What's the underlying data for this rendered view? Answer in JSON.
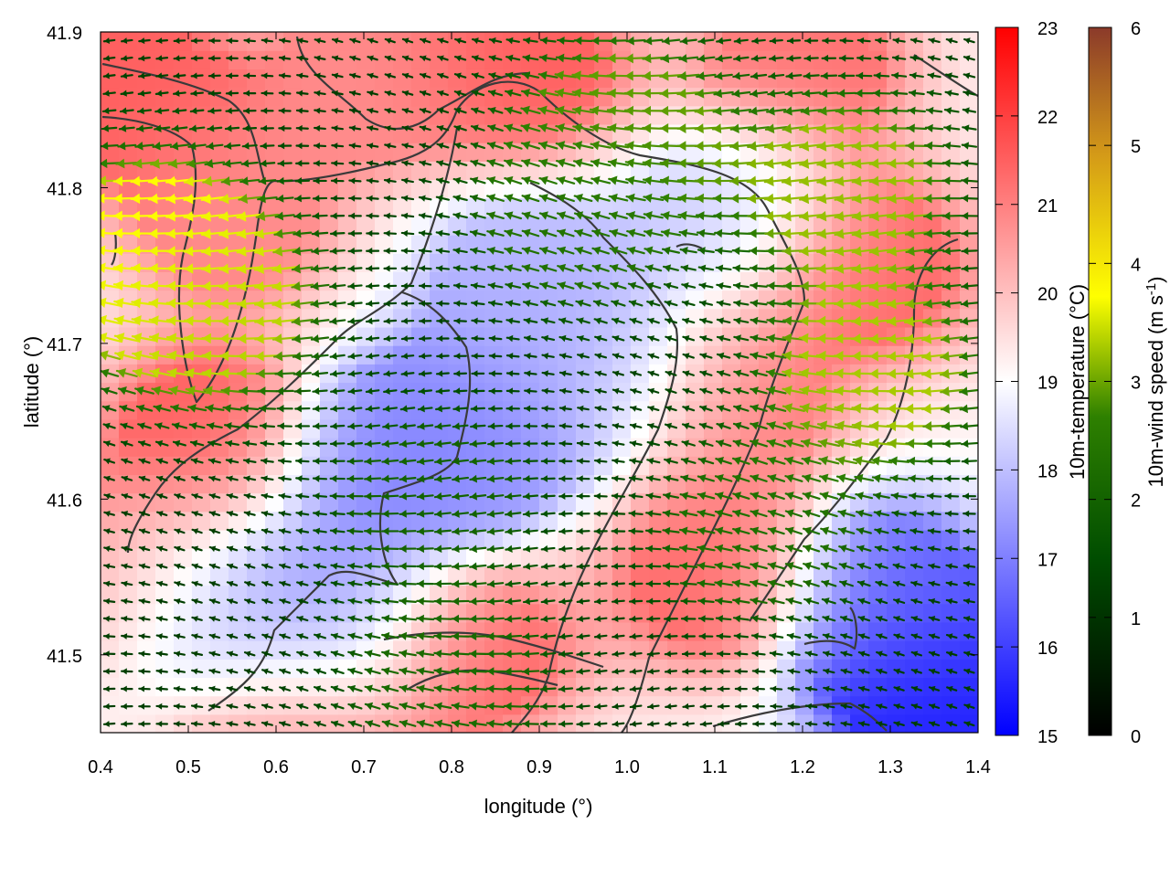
{
  "chart_data": {
    "type": "heatmap",
    "xlabel": "longitude (°)",
    "ylabel": "latitude (°)",
    "xlim": [
      0.4,
      1.4
    ],
    "ylim": [
      41.45,
      41.9
    ],
    "x_ticks": [
      "0.4",
      "0.5",
      "0.6",
      "0.7",
      "0.8",
      "0.9",
      "1.0",
      "1.1",
      "1.2",
      "1.3",
      "1.4"
    ],
    "y_ticks": [
      "41.5",
      "41.6",
      "41.7",
      "41.8",
      "41.9"
    ],
    "grid": false,
    "temperature_colorbar": {
      "label": "10m-temperature (°C)",
      "range": [
        15,
        23
      ],
      "ticks": [
        "15",
        "16",
        "17",
        "18",
        "19",
        "20",
        "21",
        "22",
        "23"
      ],
      "colors": [
        "#0000ff",
        "#ffffff",
        "#ff0000"
      ]
    },
    "wind_colorbar": {
      "label": "10m-wind speed (m s",
      "label_sup": "-1",
      "label_end": ")",
      "range": [
        0,
        6
      ],
      "ticks": [
        "0",
        "1",
        "2",
        "3",
        "4",
        "5",
        "6"
      ],
      "colors": [
        "#000000",
        "#005a00",
        "#3c8c00",
        "#ffff00",
        "#d4a017",
        "#8b3a2a"
      ]
    },
    "temperature_hotspots": [
      {
        "lon": 0.44,
        "lat": 41.86,
        "temp": 21.5
      },
      {
        "lon": 0.55,
        "lat": 41.78,
        "temp": 20.8
      },
      {
        "lon": 0.52,
        "lat": 41.64,
        "temp": 21.5
      },
      {
        "lon": 0.45,
        "lat": 41.55,
        "temp": 20.5
      },
      {
        "lon": 0.7,
        "lat": 41.87,
        "temp": 20.8
      },
      {
        "lon": 0.88,
        "lat": 41.88,
        "temp": 21.5
      },
      {
        "lon": 1.2,
        "lat": 41.88,
        "temp": 21.2
      },
      {
        "lon": 1.28,
        "lat": 41.75,
        "temp": 21.3
      },
      {
        "lon": 1.12,
        "lat": 41.66,
        "temp": 21.0
      },
      {
        "lon": 1.1,
        "lat": 41.55,
        "temp": 21.3
      },
      {
        "lon": 0.82,
        "lat": 41.5,
        "temp": 21.3
      },
      {
        "lon": 0.62,
        "lat": 41.46,
        "temp": 21.0
      },
      {
        "lon": 0.66,
        "lat": 41.52,
        "temp": 17.2
      },
      {
        "lon": 0.72,
        "lat": 41.62,
        "temp": 17.0
      },
      {
        "lon": 0.82,
        "lat": 41.64,
        "temp": 17.2
      },
      {
        "lon": 0.54,
        "lat": 41.53,
        "temp": 17.3
      },
      {
        "lon": 0.88,
        "lat": 41.74,
        "temp": 17.8
      },
      {
        "lon": 0.98,
        "lat": 41.68,
        "temp": 17.8
      },
      {
        "lon": 1.12,
        "lat": 41.79,
        "temp": 18.2
      },
      {
        "lon": 1.34,
        "lat": 41.48,
        "temp": 15.5
      },
      {
        "lon": 1.3,
        "lat": 41.54,
        "temp": 16.8
      }
    ],
    "wind_regions": [
      {
        "lon": 0.46,
        "lat": 41.76,
        "speed": 3.8
      },
      {
        "lon": 0.52,
        "lat": 41.72,
        "speed": 3.3
      },
      {
        "lon": 1.0,
        "lat": 41.84,
        "speed": 3.0
      },
      {
        "lon": 1.25,
        "lat": 41.8,
        "speed": 3.2
      },
      {
        "lon": 1.28,
        "lat": 41.68,
        "speed": 3.3
      },
      {
        "lon": 0.94,
        "lat": 41.78,
        "speed": 2.3
      },
      {
        "lon": 0.78,
        "lat": 41.6,
        "speed": 2.0
      },
      {
        "lon": 0.8,
        "lat": 41.48,
        "speed": 2.2
      },
      {
        "lon": 1.15,
        "lat": 41.58,
        "speed": 2.3
      }
    ]
  }
}
